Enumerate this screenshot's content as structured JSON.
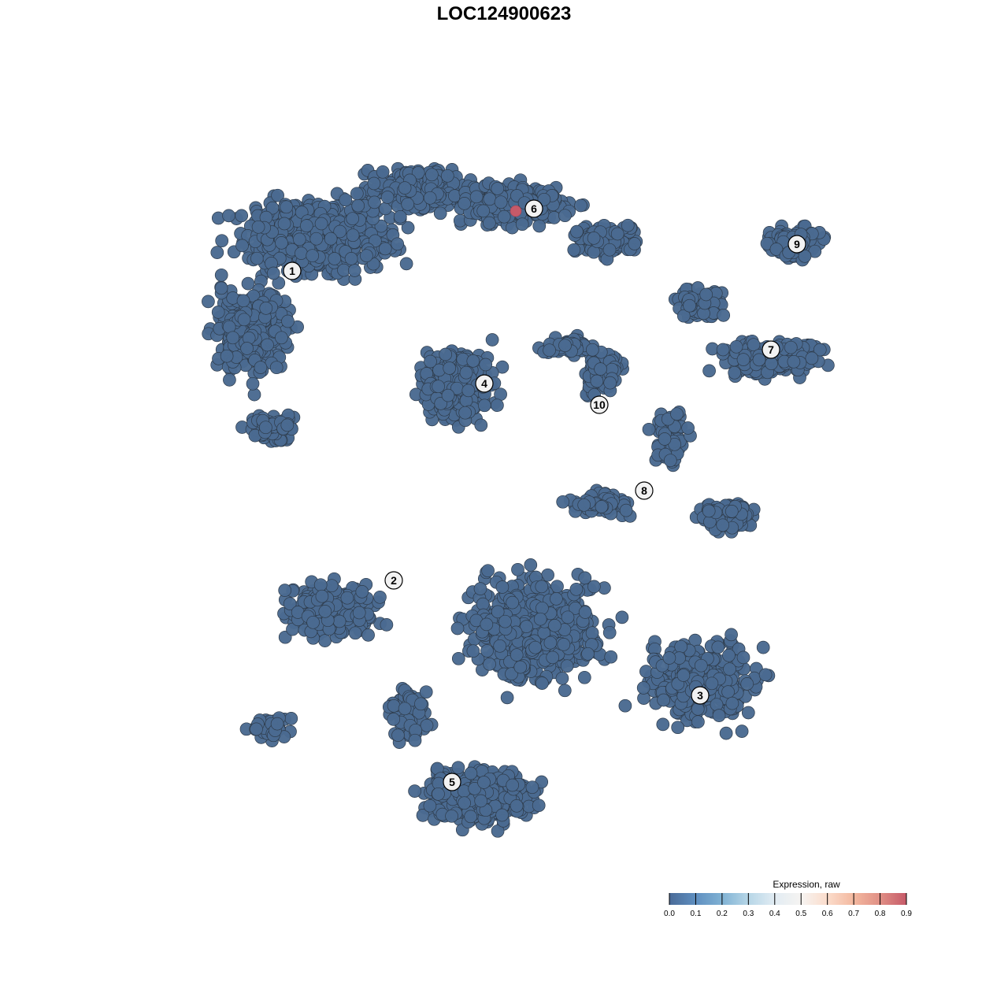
{
  "chart_data": {
    "type": "scatter",
    "title": "LOC124900623",
    "xlabel": "",
    "ylabel": "",
    "grid": false,
    "point_color_default": "#4a6a91",
    "clusters": [
      {
        "label": "1",
        "x": -26.9,
        "y": 29.6
      },
      {
        "label": "2",
        "x": -14.0,
        "y": -9.7
      },
      {
        "label": "3",
        "x": 24.9,
        "y": -24.3
      },
      {
        "label": "4",
        "x": -2.5,
        "y": 15.3
      },
      {
        "label": "5",
        "x": -6.6,
        "y": -35.3
      },
      {
        "label": "6",
        "x": 3.8,
        "y": 37.5
      },
      {
        "label": "7",
        "x": 33.9,
        "y": 19.6
      },
      {
        "label": "8",
        "x": 17.8,
        "y": 1.7
      },
      {
        "label": "9",
        "x": 37.2,
        "y": 33.0
      },
      {
        "label": "10",
        "x": 12.1,
        "y": 12.6
      }
    ],
    "expressing_points": [
      {
        "x": 1.5,
        "y": 37.2,
        "expression": 0.9
      }
    ],
    "background_expression": 0.0,
    "legend": {
      "title": "Expression, raw",
      "placement": "bottom-right",
      "ticks": [
        "0.0",
        "0.1",
        "0.2",
        "0.3",
        "0.4",
        "0.5",
        "0.6",
        "0.7",
        "0.8",
        "0.9"
      ],
      "colors": [
        "#4a6b98",
        "#5f8fc0",
        "#80b2d4",
        "#b6d6e7",
        "#e2ecf3",
        "#f6f4f2",
        "#fbdccb",
        "#f3b89f",
        "#e08f85",
        "#c65a69"
      ]
    }
  }
}
